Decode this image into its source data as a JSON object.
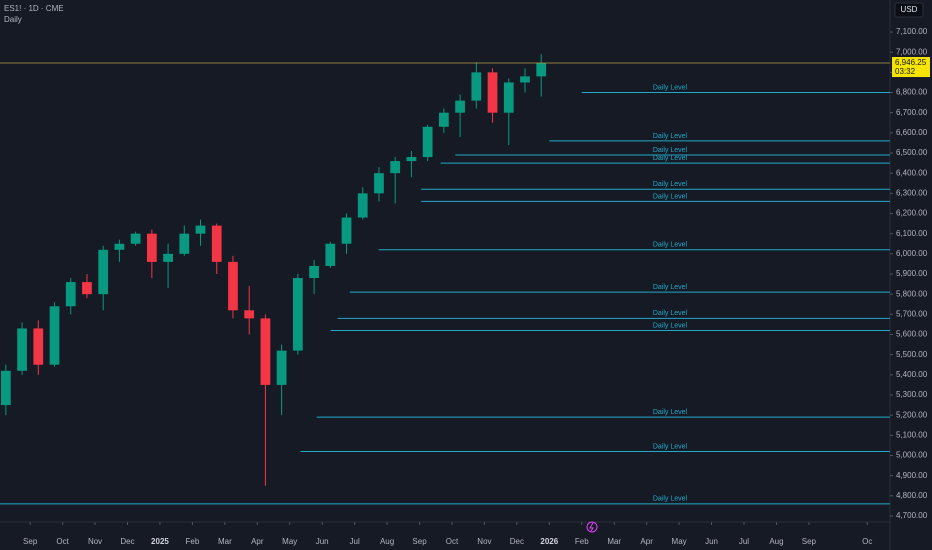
{
  "header": {
    "symbol": "ES1! · 1D · CME",
    "interval": "Daily",
    "currency": "USD"
  },
  "chart_data": {
    "type": "candlestick",
    "up_color": "#089981",
    "down_color": "#f23645",
    "level_color": "#22a9c9",
    "xlim": [
      -0.93,
      26.5
    ],
    "xticks": [
      {
        "value": 0,
        "label": "Sep"
      },
      {
        "value": 1,
        "label": "Oct"
      },
      {
        "value": 2,
        "label": "Nov"
      },
      {
        "value": 3,
        "label": "Dec"
      },
      {
        "value": 4,
        "label": "2025"
      },
      {
        "value": 5,
        "label": "Feb"
      },
      {
        "value": 6,
        "label": "Mar"
      },
      {
        "value": 7,
        "label": "Apr"
      },
      {
        "value": 8,
        "label": "May"
      },
      {
        "value": 9,
        "label": "Jun"
      },
      {
        "value": 10,
        "label": "Jul"
      },
      {
        "value": 11,
        "label": "Aug"
      },
      {
        "value": 12,
        "label": "Sep"
      },
      {
        "value": 13,
        "label": "Oct"
      },
      {
        "value": 14,
        "label": "Nov"
      },
      {
        "value": 15,
        "label": "Dec"
      },
      {
        "value": 16,
        "label": "2026"
      },
      {
        "value": 17,
        "label": "Feb"
      },
      {
        "value": 18,
        "label": "Mar"
      },
      {
        "value": 19,
        "label": "Apr"
      },
      {
        "value": 20,
        "label": "May"
      },
      {
        "value": 21,
        "label": "Jun"
      },
      {
        "value": 22,
        "label": "Jul"
      },
      {
        "value": 23,
        "label": "Aug"
      },
      {
        "value": 24,
        "label": "Sep"
      },
      {
        "value": 25.8,
        "label": "Oc"
      }
    ],
    "ylim": [
      4620,
      7180
    ],
    "yticks": [
      {
        "value": 4700,
        "label": "4,700.00"
      },
      {
        "value": 4800,
        "label": "4,800.00"
      },
      {
        "value": 4900,
        "label": "4,900.00"
      },
      {
        "value": 5000,
        "label": "5,000.00"
      },
      {
        "value": 5100,
        "label": "5,100.00"
      },
      {
        "value": 5200,
        "label": "5,200.00"
      },
      {
        "value": 5300,
        "label": "5,300.00"
      },
      {
        "value": 5400,
        "label": "5,400.00"
      },
      {
        "value": 5500,
        "label": "5,500.00"
      },
      {
        "value": 5600,
        "label": "5,600.00"
      },
      {
        "value": 5700,
        "label": "5,700.00"
      },
      {
        "value": 5800,
        "label": "5,800.00"
      },
      {
        "value": 5900,
        "label": "5,900.00"
      },
      {
        "value": 6000,
        "label": "6,000.00"
      },
      {
        "value": 6100,
        "label": "6,100.00"
      },
      {
        "value": 6200,
        "label": "6,200.00"
      },
      {
        "value": 6300,
        "label": "6,300.00"
      },
      {
        "value": 6400,
        "label": "6,400.00"
      },
      {
        "value": 6500,
        "label": "6,500.00"
      },
      {
        "value": 6600,
        "label": "6,600.00"
      },
      {
        "value": 6700,
        "label": "6,700.00"
      },
      {
        "value": 6800,
        "label": "6,800.00"
      },
      {
        "value": 6900,
        "label": "6,900.00"
      },
      {
        "value": 7000,
        "label": "7,000.00"
      },
      {
        "value": 7100,
        "label": "7,100.00"
      }
    ],
    "x": [
      -0.75,
      -0.25,
      0.25,
      0.75,
      1.25,
      1.75,
      2.25,
      2.75,
      3.25,
      3.75,
      4.25,
      4.75,
      5.25,
      5.75,
      6.25,
      6.75,
      7.25,
      7.75,
      8.25,
      8.75,
      9.25,
      9.75,
      10.25,
      10.75,
      11.25,
      11.75,
      12.25,
      12.75,
      13.25,
      13.75,
      14.25,
      14.75,
      15.25,
      15.75
    ],
    "open": [
      5250,
      5420,
      5630,
      5450,
      5740,
      5860,
      5800,
      6020,
      6050,
      6100,
      5960,
      6000,
      6100,
      6140,
      5960,
      5720,
      5680,
      5350,
      5520,
      5880,
      5940,
      6050,
      6180,
      6300,
      6400,
      6460,
      6480,
      6630,
      6700,
      6760,
      6900,
      6700,
      6850,
      6880
    ],
    "high": [
      5450,
      5660,
      5670,
      5760,
      5880,
      5900,
      6040,
      6070,
      6110,
      6120,
      6050,
      6140,
      6170,
      6150,
      5990,
      5840,
      5700,
      5550,
      5900,
      5970,
      6060,
      6200,
      6330,
      6430,
      6480,
      6510,
      6640,
      6720,
      6790,
      6950,
      6920,
      6870,
      6920,
      6990
    ],
    "low": [
      5200,
      5400,
      5400,
      5440,
      5700,
      5780,
      5720,
      5960,
      6040,
      5880,
      5830,
      5990,
      6040,
      5900,
      5680,
      5600,
      4850,
      5200,
      5500,
      5800,
      5930,
      6000,
      6170,
      6260,
      6250,
      6380,
      6460,
      6600,
      6580,
      6720,
      6650,
      6540,
      6800,
      6780
    ],
    "close": [
      5420,
      5630,
      5450,
      5740,
      5860,
      5800,
      6020,
      6050,
      6100,
      5960,
      6000,
      6100,
      6140,
      5960,
      5720,
      5680,
      5350,
      5520,
      5880,
      5940,
      6050,
      6180,
      6300,
      6400,
      6460,
      6480,
      6630,
      6700,
      6760,
      6900,
      6700,
      6850,
      6880,
      6946.25
    ],
    "levels": [
      {
        "price": 6800,
        "from": 17.0,
        "label": "Daily Level"
      },
      {
        "price": 6560,
        "from": 16.0,
        "label": "Daily Level"
      },
      {
        "price": 6490,
        "from": 13.1,
        "label": "Daily Level"
      },
      {
        "price": 6450,
        "from": 12.65,
        "label": "Daily Level"
      },
      {
        "price": 6320,
        "from": 12.05,
        "label": "Daily Level"
      },
      {
        "price": 6260,
        "from": 12.05,
        "label": "Daily Level"
      },
      {
        "price": 6020,
        "from": 10.74,
        "label": "Daily Level"
      },
      {
        "price": 5810,
        "from": 9.85,
        "label": "Daily Level"
      },
      {
        "price": 5680,
        "from": 9.48,
        "label": "Daily Level"
      },
      {
        "price": 5620,
        "from": 9.26,
        "label": "Daily Level"
      },
      {
        "price": 5190,
        "from": 8.83,
        "label": "Daily Level"
      },
      {
        "price": 5020,
        "from": 8.33,
        "label": "Daily Level"
      },
      {
        "price": 4760,
        "from": -0.93,
        "label": "Daily Level"
      }
    ],
    "last_price": {
      "value": 6946.25,
      "label": "6,946.25"
    },
    "countdown": "03:32"
  }
}
